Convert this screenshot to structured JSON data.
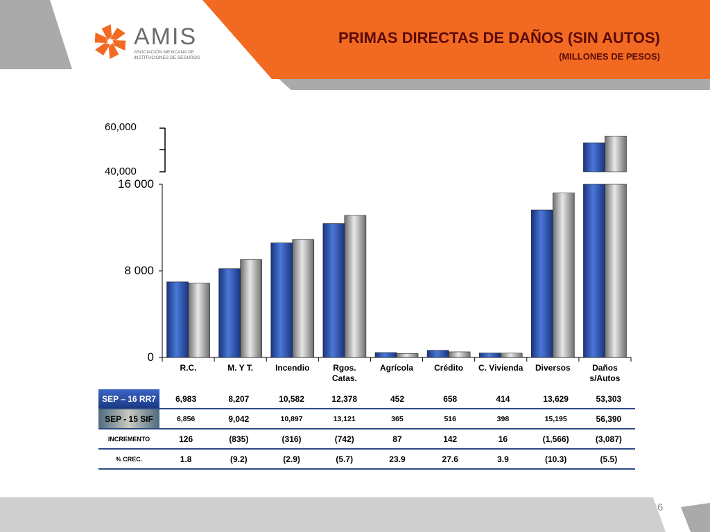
{
  "header": {
    "logo": {
      "name": "AMIS",
      "subtitle": "ASOCIACIÓN MEXICANA DE INSTITUCIONES DE SEGUROS"
    },
    "title": "PRIMAS DIRECTAS DE  DAÑOS (SIN AUTOS)",
    "subtitle": "(MILLONES DE PESOS)"
  },
  "colors": {
    "accent": "#f26a21",
    "band_gray": "#aaaaaa",
    "title": "#5a0a0a",
    "series_1": "#2545a0",
    "series_2": "#9a9a9a",
    "table_line": "#2d4a86"
  },
  "chart_data": {
    "type": "bar",
    "categories": [
      "R.C.",
      "M. Y T.",
      "Incendio",
      "Rgos. Catas.",
      "Agrícola",
      "Crédito",
      "C. Vivienda",
      "Diversos",
      "Daños s/Autos"
    ],
    "series": [
      {
        "name": "SEP – 16 RR7",
        "values": [
          6983,
          8207,
          10582,
          12378,
          452,
          658,
          414,
          13629,
          53303
        ]
      },
      {
        "name": "SEP -  15 SIF",
        "values": [
          6856,
          9042,
          10897,
          13121,
          365,
          516,
          398,
          15195,
          56390
        ]
      }
    ],
    "y_ticks_lower": [
      "0",
      "8 000",
      "16 000"
    ],
    "y_ticks_upper": [
      "40,000",
      "60,000"
    ],
    "ylim_lower": [
      0,
      16000
    ],
    "ylim_upper": [
      40000,
      60000
    ],
    "axis_break": true,
    "grid": false
  },
  "table": {
    "rows": [
      {
        "label": "SEP – 16 RR7",
        "cells": [
          "6,983",
          "8,207",
          "10,582",
          "12,378",
          "452",
          "658",
          "414",
          "13,629",
          "53,303"
        ]
      },
      {
        "label": "SEP -  15 SIF",
        "cells": [
          "6,856",
          "9,042",
          "10,897",
          "13,121",
          "365",
          "516",
          "398",
          "15,195",
          "56,390"
        ]
      },
      {
        "label": "INCREMENTO",
        "cells": [
          "126",
          "(835)",
          "(316)",
          "(742)",
          "87",
          "142",
          "16",
          "(1,566)",
          "(3,087)"
        ]
      },
      {
        "label": "% CREC.",
        "cells": [
          "1.8",
          "(9.2)",
          "(2.9)",
          "(5.7)",
          "23.9",
          "27.6",
          "3.9",
          "(10.3)",
          "(5.5)"
        ]
      }
    ]
  },
  "footer": {
    "page_number": "6"
  }
}
